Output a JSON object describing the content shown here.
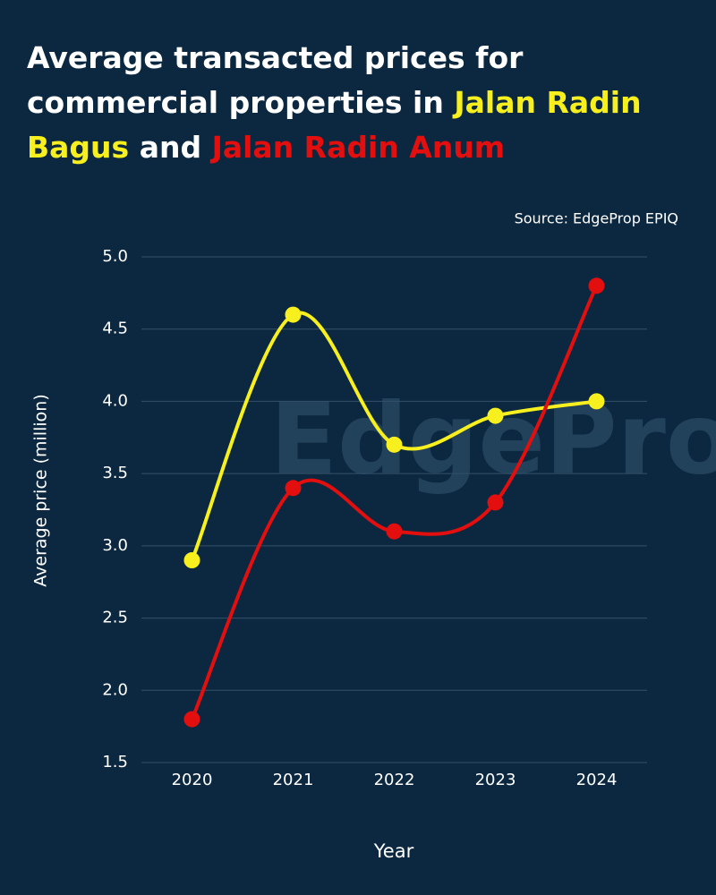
{
  "chart_data": {
    "type": "line",
    "title": "Average transacted prices for commercial properties in",
    "title_joiner": "and",
    "source": "Source: EdgeProp EPIQ",
    "watermark": "EdgeProp",
    "xlabel": "Year",
    "ylabel": "Average price (million)",
    "categories": [
      "2020",
      "2021",
      "2022",
      "2023",
      "2024"
    ],
    "series": [
      {
        "name": "Jalan Radin Bagus",
        "color": "#f7f01e",
        "values": [
          2.9,
          4.6,
          3.7,
          3.9,
          4.0
        ]
      },
      {
        "name": "Jalan Radin Anum",
        "color": "#e30e0e",
        "values": [
          1.8,
          3.4,
          3.1,
          3.3,
          4.8
        ]
      }
    ],
    "ylim": [
      1.5,
      5.0
    ],
    "yticks": [
      1.5,
      {
        "value": 2.0,
        "label": "2.0"
      },
      2.5,
      {
        "value": 3.0,
        "label": "3.0"
      },
      3.5,
      {
        "value": 4.0,
        "label": "4.0"
      },
      4.5,
      {
        "value": 5.0,
        "label": "5.0"
      }
    ],
    "grid": true,
    "smooth": true
  }
}
